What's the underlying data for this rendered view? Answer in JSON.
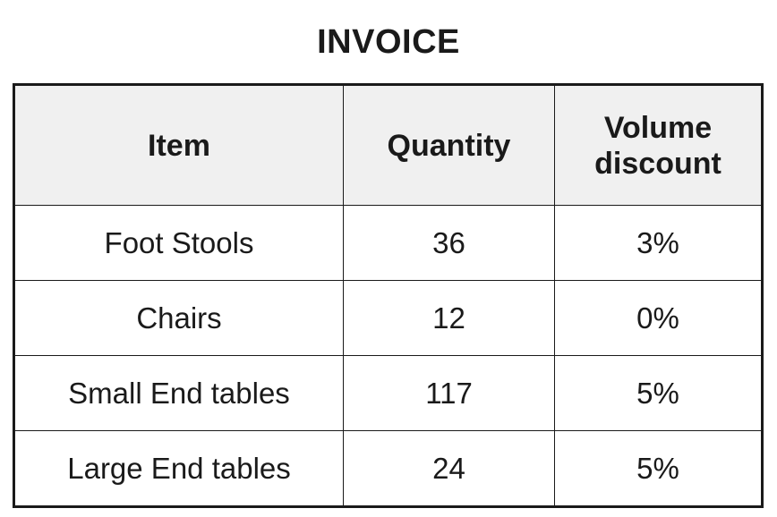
{
  "title": "INVOICE",
  "table": {
    "headers": {
      "item": "Item",
      "quantity": "Quantity",
      "discount_line1": "Volume",
      "discount_line2": "discount"
    },
    "rows": [
      {
        "item": "Foot Stools",
        "quantity": "36",
        "discount": "3%"
      },
      {
        "item": "Chairs",
        "quantity": "12",
        "discount": "0%"
      },
      {
        "item": "Small End tables",
        "quantity": "117",
        "discount": "5%"
      },
      {
        "item": "Large End tables",
        "quantity": "24",
        "discount": "5%"
      }
    ]
  }
}
